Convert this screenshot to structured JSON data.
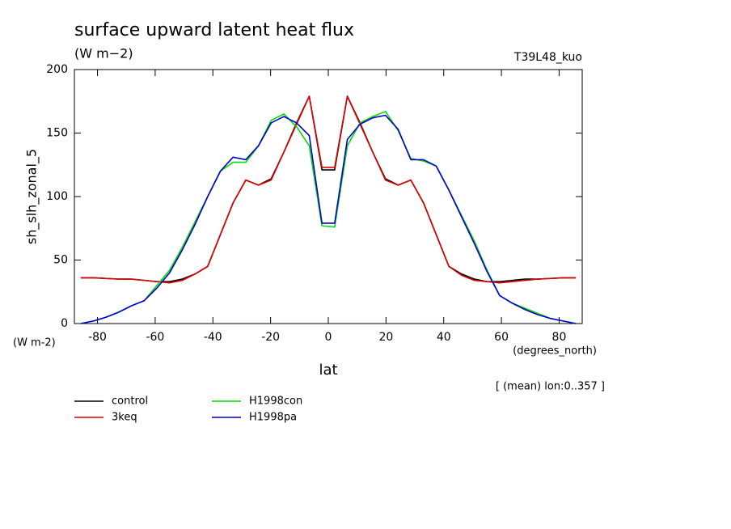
{
  "chart_data": {
    "type": "line",
    "title": "surface upward latent heat flux",
    "subtitle": "(W m−2)",
    "annotation": "T39L48_kuo",
    "y_label": "sh_slh_zonal_5",
    "y_units": "(W m-2)",
    "x_label": "lat",
    "x_units": "(degrees_north)",
    "note": "[ (mean) lon:0..357 ]",
    "x": [
      -85.8,
      -81.4,
      -77.0,
      -72.6,
      -68.2,
      -63.8,
      -59.4,
      -55.0,
      -50.6,
      -46.2,
      -41.8,
      -37.4,
      -33.0,
      -28.6,
      -24.2,
      -19.8,
      -15.4,
      -11.0,
      -6.6,
      -2.2,
      2.2,
      6.6,
      11.0,
      15.4,
      19.8,
      24.2,
      28.6,
      33.0,
      37.4,
      41.8,
      46.2,
      50.6,
      55.0,
      59.4,
      63.8,
      68.2,
      72.6,
      77.0,
      81.4,
      85.8
    ],
    "series": [
      {
        "name": "control",
        "color": "#000000",
        "values": [
          36,
          36,
          35.5,
          35,
          35,
          34,
          33,
          33,
          35,
          39,
          45,
          70,
          95,
          113,
          109,
          114,
          135,
          158,
          179,
          121,
          121,
          179,
          158,
          135,
          114,
          109,
          113,
          95,
          70,
          45,
          39,
          35,
          33,
          33,
          34,
          35,
          35,
          35.5,
          36,
          36
        ]
      },
      {
        "name": "3keq",
        "color": "#dd0000",
        "values": [
          36,
          36,
          35.5,
          35,
          35,
          34,
          33,
          32,
          34,
          39,
          45,
          70,
          95,
          113,
          109,
          113,
          135,
          157,
          179,
          123,
          123,
          179,
          157,
          135,
          113,
          109,
          113,
          95,
          70,
          45,
          38,
          34,
          33,
          32,
          33,
          34,
          35,
          35.5,
          36,
          36
        ]
      },
      {
        "name": "H1998con",
        "color": "#00dd00",
        "values": [
          0,
          2,
          5,
          9,
          14,
          18,
          30,
          42,
          60,
          80,
          100,
          120,
          127,
          127,
          140,
          160,
          165,
          155,
          140,
          77,
          76,
          140,
          158,
          163,
          167,
          152,
          130,
          128,
          124,
          105,
          85,
          65,
          42,
          22,
          16,
          12,
          8,
          4,
          2,
          0
        ]
      },
      {
        "name": "H1998pa",
        "color": "#0000cc",
        "values": [
          0,
          2,
          5,
          9,
          14,
          18,
          28,
          40,
          58,
          78,
          100,
          120,
          131,
          129,
          140,
          158,
          163,
          158,
          148,
          79,
          79,
          145,
          157,
          162,
          164,
          153,
          129,
          129,
          124,
          105,
          84,
          63,
          41,
          22,
          16,
          11,
          7,
          4,
          2,
          0
        ]
      }
    ],
    "xlim": [
      -88,
      88
    ],
    "ylim": [
      0,
      200
    ],
    "xticks": [
      -80,
      -60,
      -40,
      -20,
      0,
      20,
      40,
      60,
      80
    ],
    "yticks": [
      0,
      50,
      100,
      150,
      200
    ]
  }
}
